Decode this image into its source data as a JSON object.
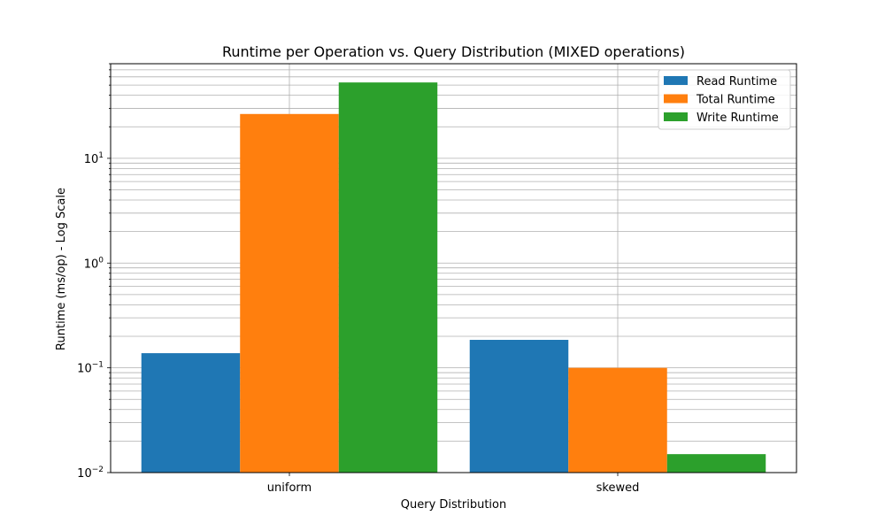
{
  "chart_data": {
    "type": "bar",
    "title": "Runtime per Operation vs. Query Distribution (MIXED operations)",
    "xlabel": "Query Distribution",
    "ylabel": "Runtime (ms/op) - Log Scale",
    "yscale": "log",
    "ylim": [
      0.01,
      80
    ],
    "categories": [
      "uniform",
      "skewed"
    ],
    "series": [
      {
        "name": "Read Runtime",
        "color": "#1f77b4",
        "values": [
          0.138,
          0.185
        ]
      },
      {
        "name": "Total Runtime",
        "color": "#ff7f0e",
        "values": [
          26.5,
          0.1
        ]
      },
      {
        "name": "Write Runtime",
        "color": "#2ca02c",
        "values": [
          53.0,
          0.015
        ]
      }
    ],
    "yticks": [
      {
        "value": 0.01,
        "base": "10",
        "exp": "−2"
      },
      {
        "value": 0.1,
        "base": "10",
        "exp": "−1"
      },
      {
        "value": 1,
        "base": "10",
        "exp": "0"
      },
      {
        "value": 10,
        "base": "10",
        "exp": "1"
      }
    ],
    "grid": true,
    "legend_position": "top-right"
  }
}
